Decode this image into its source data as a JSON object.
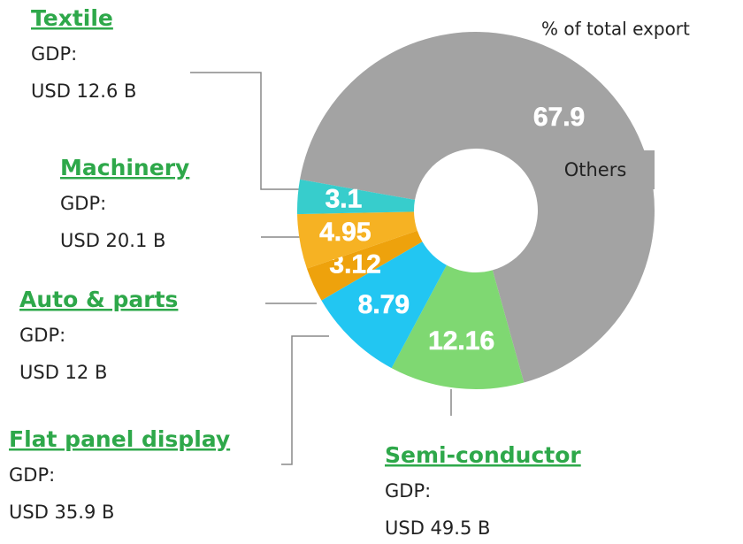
{
  "chart_data": {
    "type": "pie",
    "donut": true,
    "subtitle": "% of total export",
    "categories": [
      "Others",
      "Semi-conductor",
      "Flat panel display",
      "Auto & parts",
      "Machinery",
      "Textile"
    ],
    "values": [
      67.9,
      12.16,
      8.79,
      3.12,
      4.95,
      3.1
    ],
    "colors": [
      "#a3a3a3",
      "#7fd872",
      "#22c6f2",
      "#eea20c",
      "#f6b223",
      "#37cdcc"
    ],
    "gdp_prefix": "GDP:",
    "gdp_labels": [
      null,
      "USD 49.5 B",
      "USD 35.9 B",
      "USD 12 B",
      "USD 20.1 B",
      "USD 12.6 B"
    ]
  }
}
